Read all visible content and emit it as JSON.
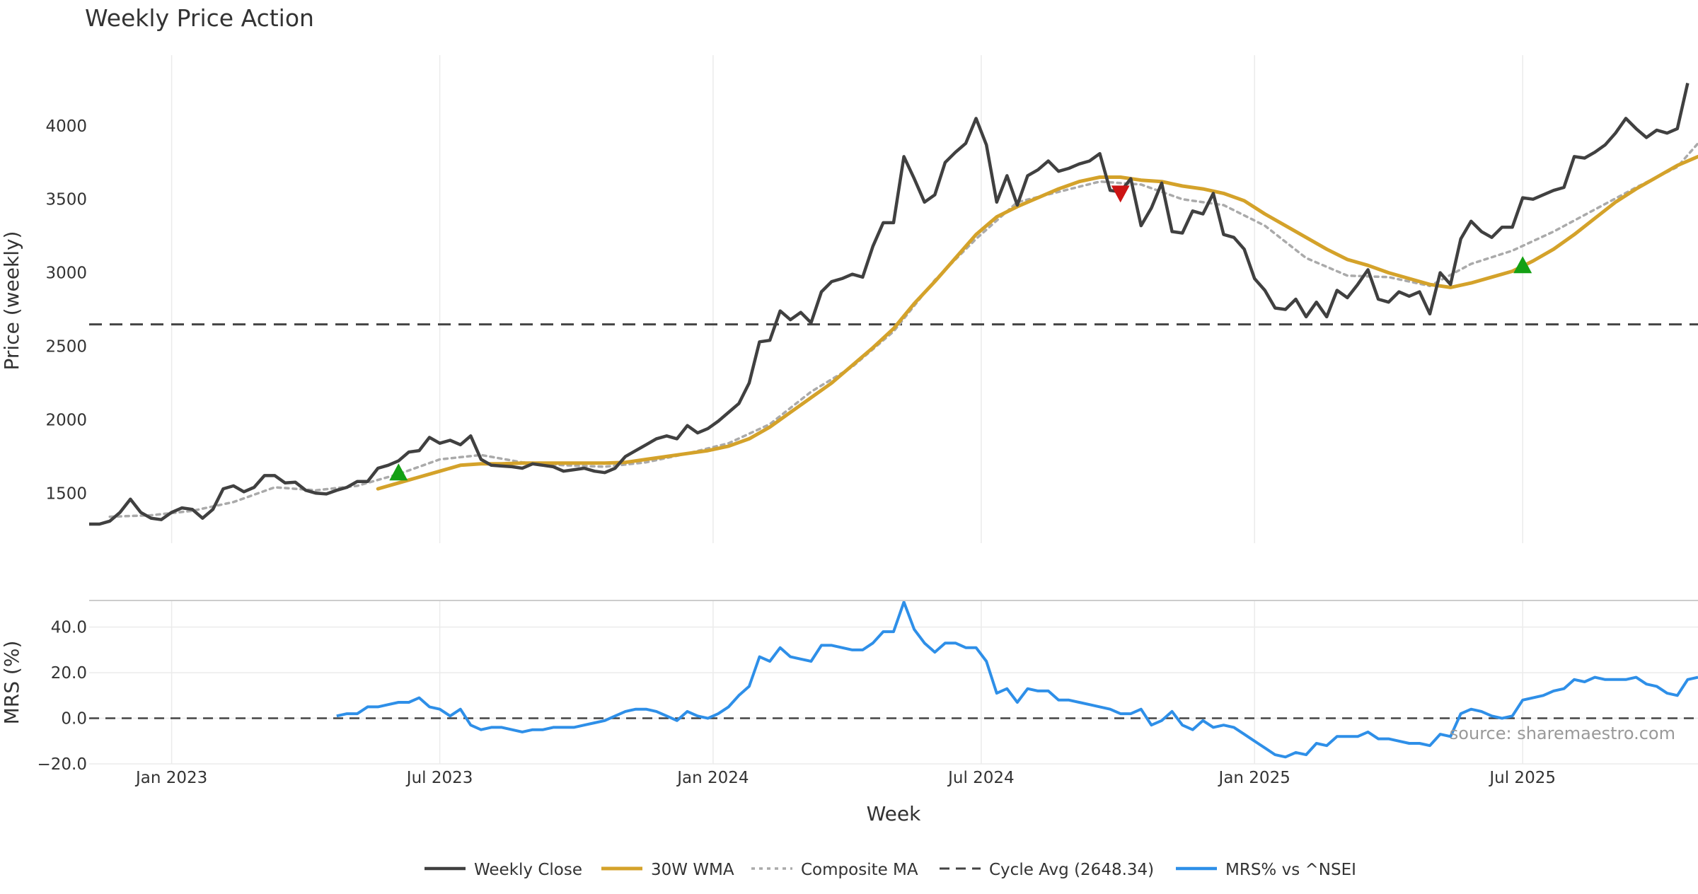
{
  "colors": {
    "close": "#404040",
    "wma": "#D4A22A",
    "composite": "#AAAAAA",
    "cycle": "#444444",
    "mrs": "#2E8FE8",
    "buy_marker": "#14A014",
    "sell_marker": "#CC1414",
    "grid": "#EBEBEB"
  },
  "chart_data": [
    {
      "type": "line",
      "title": "Weekly Price Action",
      "ylabel": "Price (weekly)",
      "ylim": [
        1160,
        4480
      ],
      "y_ticks": [
        1500,
        2000,
        2500,
        3000,
        3500,
        4000
      ],
      "x_ticks": [
        {
          "label": "Jan 2023",
          "week": 8
        },
        {
          "label": "Jul 2023",
          "week": 34
        },
        {
          "label": "Jan 2024",
          "week": 60.5
        },
        {
          "label": "Jul 2024",
          "week": 86.5
        },
        {
          "label": "Jan 2025",
          "week": 113
        },
        {
          "label": "Jul 2025",
          "week": 139
        }
      ],
      "xlim": [
        0,
        156
      ],
      "cycle_avg": 2648.34,
      "series": [
        {
          "name": "Weekly Close",
          "x": [
            0,
            1,
            2,
            3,
            4,
            5,
            6,
            7,
            8,
            9,
            10,
            11,
            12,
            13,
            14,
            15,
            16,
            17,
            18,
            19,
            20,
            21,
            22,
            23,
            24,
            25,
            26,
            27,
            28,
            29,
            30,
            31,
            32,
            33,
            34,
            35,
            36,
            37,
            38,
            39,
            40,
            41,
            42,
            43,
            44,
            45,
            46,
            47,
            48,
            49,
            50,
            51,
            52,
            53,
            54,
            55,
            56,
            57,
            58,
            59,
            60,
            61,
            62,
            63,
            64,
            65,
            66,
            67,
            68,
            69,
            70,
            71,
            72,
            73,
            74,
            75,
            76,
            77,
            78,
            79,
            80,
            81,
            82,
            83,
            84,
            85,
            86,
            87,
            88,
            89,
            90,
            91,
            92,
            93,
            94,
            95,
            96,
            97,
            98,
            99,
            100,
            101,
            102,
            103,
            104,
            105,
            106,
            107,
            108,
            109,
            110,
            111,
            112,
            113,
            114,
            115,
            116,
            117,
            118,
            119,
            120,
            121,
            122,
            123,
            124,
            125,
            126,
            127,
            128,
            129,
            130,
            131,
            132,
            133,
            134,
            135,
            136,
            137,
            138,
            139,
            140,
            141,
            142,
            143,
            144,
            145,
            146,
            147,
            148,
            149,
            150,
            151,
            152,
            153,
            154,
            155
          ],
          "values": [
            1290,
            1290,
            1310,
            1370,
            1460,
            1370,
            1330,
            1320,
            1370,
            1400,
            1390,
            1330,
            1390,
            1530,
            1550,
            1510,
            1540,
            1620,
            1620,
            1570,
            1575,
            1520,
            1500,
            1495,
            1520,
            1540,
            1580,
            1580,
            1670,
            1690,
            1720,
            1780,
            1790,
            1880,
            1840,
            1860,
            1830,
            1890,
            1730,
            1690,
            1685,
            1680,
            1670,
            1700,
            1690,
            1680,
            1650,
            1660,
            1670,
            1650,
            1640,
            1670,
            1750,
            1790,
            1830,
            1870,
            1890,
            1870,
            1960,
            1910,
            1940,
            1990,
            2050,
            2110,
            2250,
            2530,
            2540,
            2740,
            2680,
            2730,
            2660,
            2870,
            2940,
            2960,
            2990,
            2970,
            3180,
            3340,
            3340,
            3790,
            3640,
            3480,
            3530,
            3750,
            3820,
            3880,
            4050,
            3870,
            3480,
            3660,
            3460,
            3660,
            3700,
            3760,
            3690,
            3710,
            3740,
            3760,
            3810,
            3560,
            3550,
            3640,
            3320,
            3440,
            3610,
            3280,
            3270,
            3420,
            3400,
            3540,
            3260,
            3240,
            3160,
            2960,
            2880,
            2760,
            2750,
            2820,
            2700,
            2800,
            2700,
            2880,
            2830,
            2920,
            3020,
            2820,
            2800,
            2870,
            2840,
            2870,
            2720,
            3000,
            2920,
            3230,
            3350,
            3280,
            3240,
            3310,
            3310,
            3510,
            3500,
            3530,
            3560,
            3580,
            3790,
            3780,
            3820,
            3870,
            3950,
            4050,
            3980,
            3920,
            3970,
            3950,
            3980,
            4290
          ]
        },
        {
          "name": "30W WMA",
          "x": [
            28,
            30,
            32,
            34,
            36,
            38,
            40,
            42,
            44,
            46,
            48,
            50,
            52,
            54,
            56,
            58,
            60,
            62,
            64,
            66,
            68,
            70,
            72,
            74,
            76,
            78,
            80,
            82,
            84,
            86,
            88,
            90,
            92,
            94,
            96,
            98,
            100,
            102,
            104,
            106,
            108,
            110,
            112,
            114,
            116,
            118,
            120,
            122,
            124,
            126,
            128,
            130,
            132,
            134,
            136,
            138,
            140,
            142,
            144,
            146,
            148,
            150,
            152,
            154,
            156
          ],
          "values": [
            1530,
            1570,
            1610,
            1650,
            1690,
            1700,
            1700,
            1705,
            1705,
            1705,
            1705,
            1705,
            1710,
            1730,
            1750,
            1770,
            1790,
            1820,
            1870,
            1950,
            2050,
            2150,
            2250,
            2370,
            2490,
            2620,
            2790,
            2940,
            3100,
            3260,
            3380,
            3450,
            3510,
            3570,
            3620,
            3650,
            3650,
            3630,
            3620,
            3590,
            3570,
            3540,
            3490,
            3400,
            3320,
            3240,
            3160,
            3090,
            3050,
            3000,
            2960,
            2920,
            2900,
            2930,
            2970,
            3010,
            3080,
            3160,
            3260,
            3370,
            3480,
            3570,
            3650,
            3730,
            3790
          ]
        },
        {
          "name": "Composite MA",
          "x": [
            2,
            6,
            10,
            14,
            18,
            22,
            26,
            30,
            34,
            38,
            42,
            46,
            50,
            54,
            58,
            62,
            66,
            70,
            74,
            78,
            82,
            86,
            90,
            94,
            98,
            102,
            106,
            110,
            114,
            118,
            122,
            126,
            130,
            134,
            138,
            142,
            146,
            150,
            154,
            156
          ],
          "values": [
            1340,
            1350,
            1380,
            1440,
            1540,
            1520,
            1550,
            1630,
            1730,
            1760,
            1710,
            1690,
            1680,
            1710,
            1770,
            1840,
            1970,
            2190,
            2360,
            2600,
            2950,
            3230,
            3480,
            3550,
            3620,
            3600,
            3500,
            3460,
            3320,
            3100,
            2980,
            2970,
            2910,
            3060,
            3150,
            3280,
            3430,
            3580,
            3720,
            3880
          ]
        },
        {
          "name": "Cycle Avg (2648.34)",
          "values": [
            2648.34
          ]
        }
      ],
      "markers": [
        {
          "type": "buy",
          "week": 30,
          "value": 1640
        },
        {
          "type": "sell",
          "week": 100,
          "value": 3540
        },
        {
          "type": "buy",
          "week": 139,
          "value": 3050
        }
      ]
    },
    {
      "type": "line",
      "ylabel": "MRS (%)",
      "xlabel": "Week",
      "ylim": [
        -20,
        52
      ],
      "y_ticks": [
        {
          "v": 40,
          "label": "40.0"
        },
        {
          "v": 20,
          "label": "20.0"
        },
        {
          "v": 0,
          "label": "0.0"
        },
        {
          "v": -20,
          "label": "−20.0"
        }
      ],
      "zero_line": 0,
      "series": [
        {
          "name": "MRS% vs ^NSEI",
          "x": [
            24,
            25,
            26,
            27,
            28,
            29,
            30,
            31,
            32,
            33,
            34,
            35,
            36,
            37,
            38,
            39,
            40,
            41,
            42,
            43,
            44,
            45,
            46,
            47,
            48,
            49,
            50,
            51,
            52,
            53,
            54,
            55,
            56,
            57,
            58,
            59,
            60,
            61,
            62,
            63,
            64,
            65,
            66,
            67,
            68,
            69,
            70,
            71,
            72,
            73,
            74,
            75,
            76,
            77,
            78,
            79,
            80,
            81,
            82,
            83,
            84,
            85,
            86,
            87,
            88,
            89,
            90,
            91,
            92,
            93,
            94,
            95,
            96,
            97,
            98,
            99,
            100,
            101,
            102,
            103,
            104,
            105,
            106,
            107,
            108,
            109,
            110,
            111,
            112,
            113,
            114,
            115,
            116,
            117,
            118,
            119,
            120,
            121,
            122,
            123,
            124,
            125,
            126,
            127,
            128,
            129,
            130,
            131,
            132,
            133,
            134,
            135,
            136,
            137,
            138,
            139,
            140,
            141,
            142,
            143,
            144,
            145,
            146,
            147,
            148,
            149,
            150,
            151,
            152,
            153,
            154,
            155,
            156
          ],
          "values": [
            1,
            2,
            2,
            5,
            5,
            6,
            7,
            7,
            9,
            5,
            4,
            1,
            4,
            -3,
            -5,
            -4,
            -4,
            -5,
            -6,
            -5,
            -5,
            -4,
            -4,
            -4,
            -3,
            -2,
            -1,
            1,
            3,
            4,
            4,
            3,
            1,
            -1,
            3,
            1,
            0,
            2,
            5,
            10,
            14,
            27,
            25,
            31,
            27,
            26,
            25,
            32,
            32,
            31,
            30,
            30,
            33,
            38,
            38,
            51,
            39,
            33,
            29,
            33,
            33,
            31,
            31,
            25,
            11,
            13,
            7,
            13,
            12,
            12,
            8,
            8,
            7,
            6,
            5,
            4,
            2,
            2,
            4,
            -3,
            -1,
            3,
            -3,
            -5,
            -1,
            -4,
            -3,
            -4,
            -7,
            -10,
            -13,
            -16,
            -17,
            -15,
            -16,
            -11,
            -12,
            -8,
            -8,
            -8,
            -6,
            -9,
            -9,
            -10,
            -11,
            -11,
            -12,
            -7,
            -8,
            2,
            4,
            3,
            1,
            0,
            1,
            8,
            9,
            10,
            12,
            13,
            17,
            16,
            18,
            17,
            17,
            17,
            18,
            15,
            14,
            11,
            10,
            17,
            18
          ]
        }
      ]
    }
  ],
  "watermark": "source: sharemaestro.com"
}
